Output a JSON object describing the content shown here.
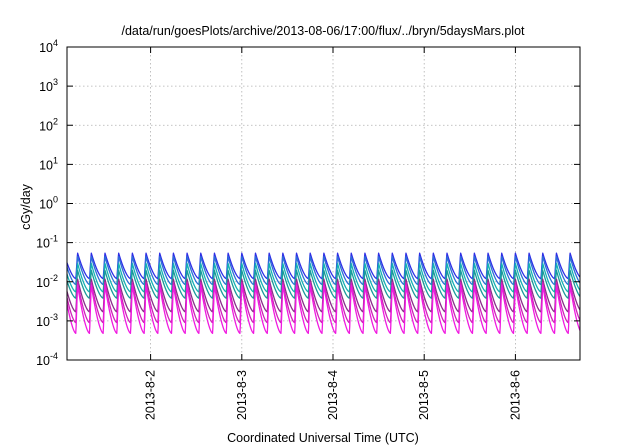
{
  "chart_data": {
    "type": "line",
    "title": "/data/run/goesPlots/archive/2013-08-06/17:00/flux/../bryn/5daysMars.plot",
    "xlabel": "Coordinated Universal Time (UTC)",
    "ylabel": "cGy/day",
    "yscale": "log",
    "ylim": [
      0.0001,
      10000
    ],
    "xlim": [
      "2013-08-01 02:00",
      "2013-08-06 17:00"
    ],
    "grid": true,
    "y_ticks": [
      {
        "base": "10",
        "exp": "4"
      },
      {
        "base": "10",
        "exp": "3"
      },
      {
        "base": "10",
        "exp": "2"
      },
      {
        "base": "10",
        "exp": "1"
      },
      {
        "base": "10",
        "exp": "0"
      },
      {
        "base": "10",
        "exp": "-1"
      },
      {
        "base": "10",
        "exp": "-2"
      },
      {
        "base": "10",
        "exp": "-3"
      },
      {
        "base": "10",
        "exp": "-4"
      }
    ],
    "x_ticks": [
      "2013-8-2",
      "2013-8-3",
      "2013-8-4",
      "2013-8-5",
      "2013-8-6"
    ],
    "oscillation_period_hours": 3.6,
    "series": [
      {
        "color": "#2e2ee6",
        "peak": 0.055,
        "trough": 0.012
      },
      {
        "color": "#2a70d6",
        "peak": 0.045,
        "trough": 0.0085
      },
      {
        "color": "#14b3b3",
        "peak": 0.03,
        "trough": 0.0055
      },
      {
        "color": "#1a9a9a",
        "peak": 0.02,
        "trough": 0.0038
      },
      {
        "color": "#8a2e8a",
        "peak": 0.012,
        "trough": 0.0017
      },
      {
        "color": "#cf22b8",
        "peak": 0.01,
        "trough": 0.0009
      },
      {
        "color": "#f01ae0",
        "peak": 0.0085,
        "trough": 0.00048
      }
    ]
  }
}
